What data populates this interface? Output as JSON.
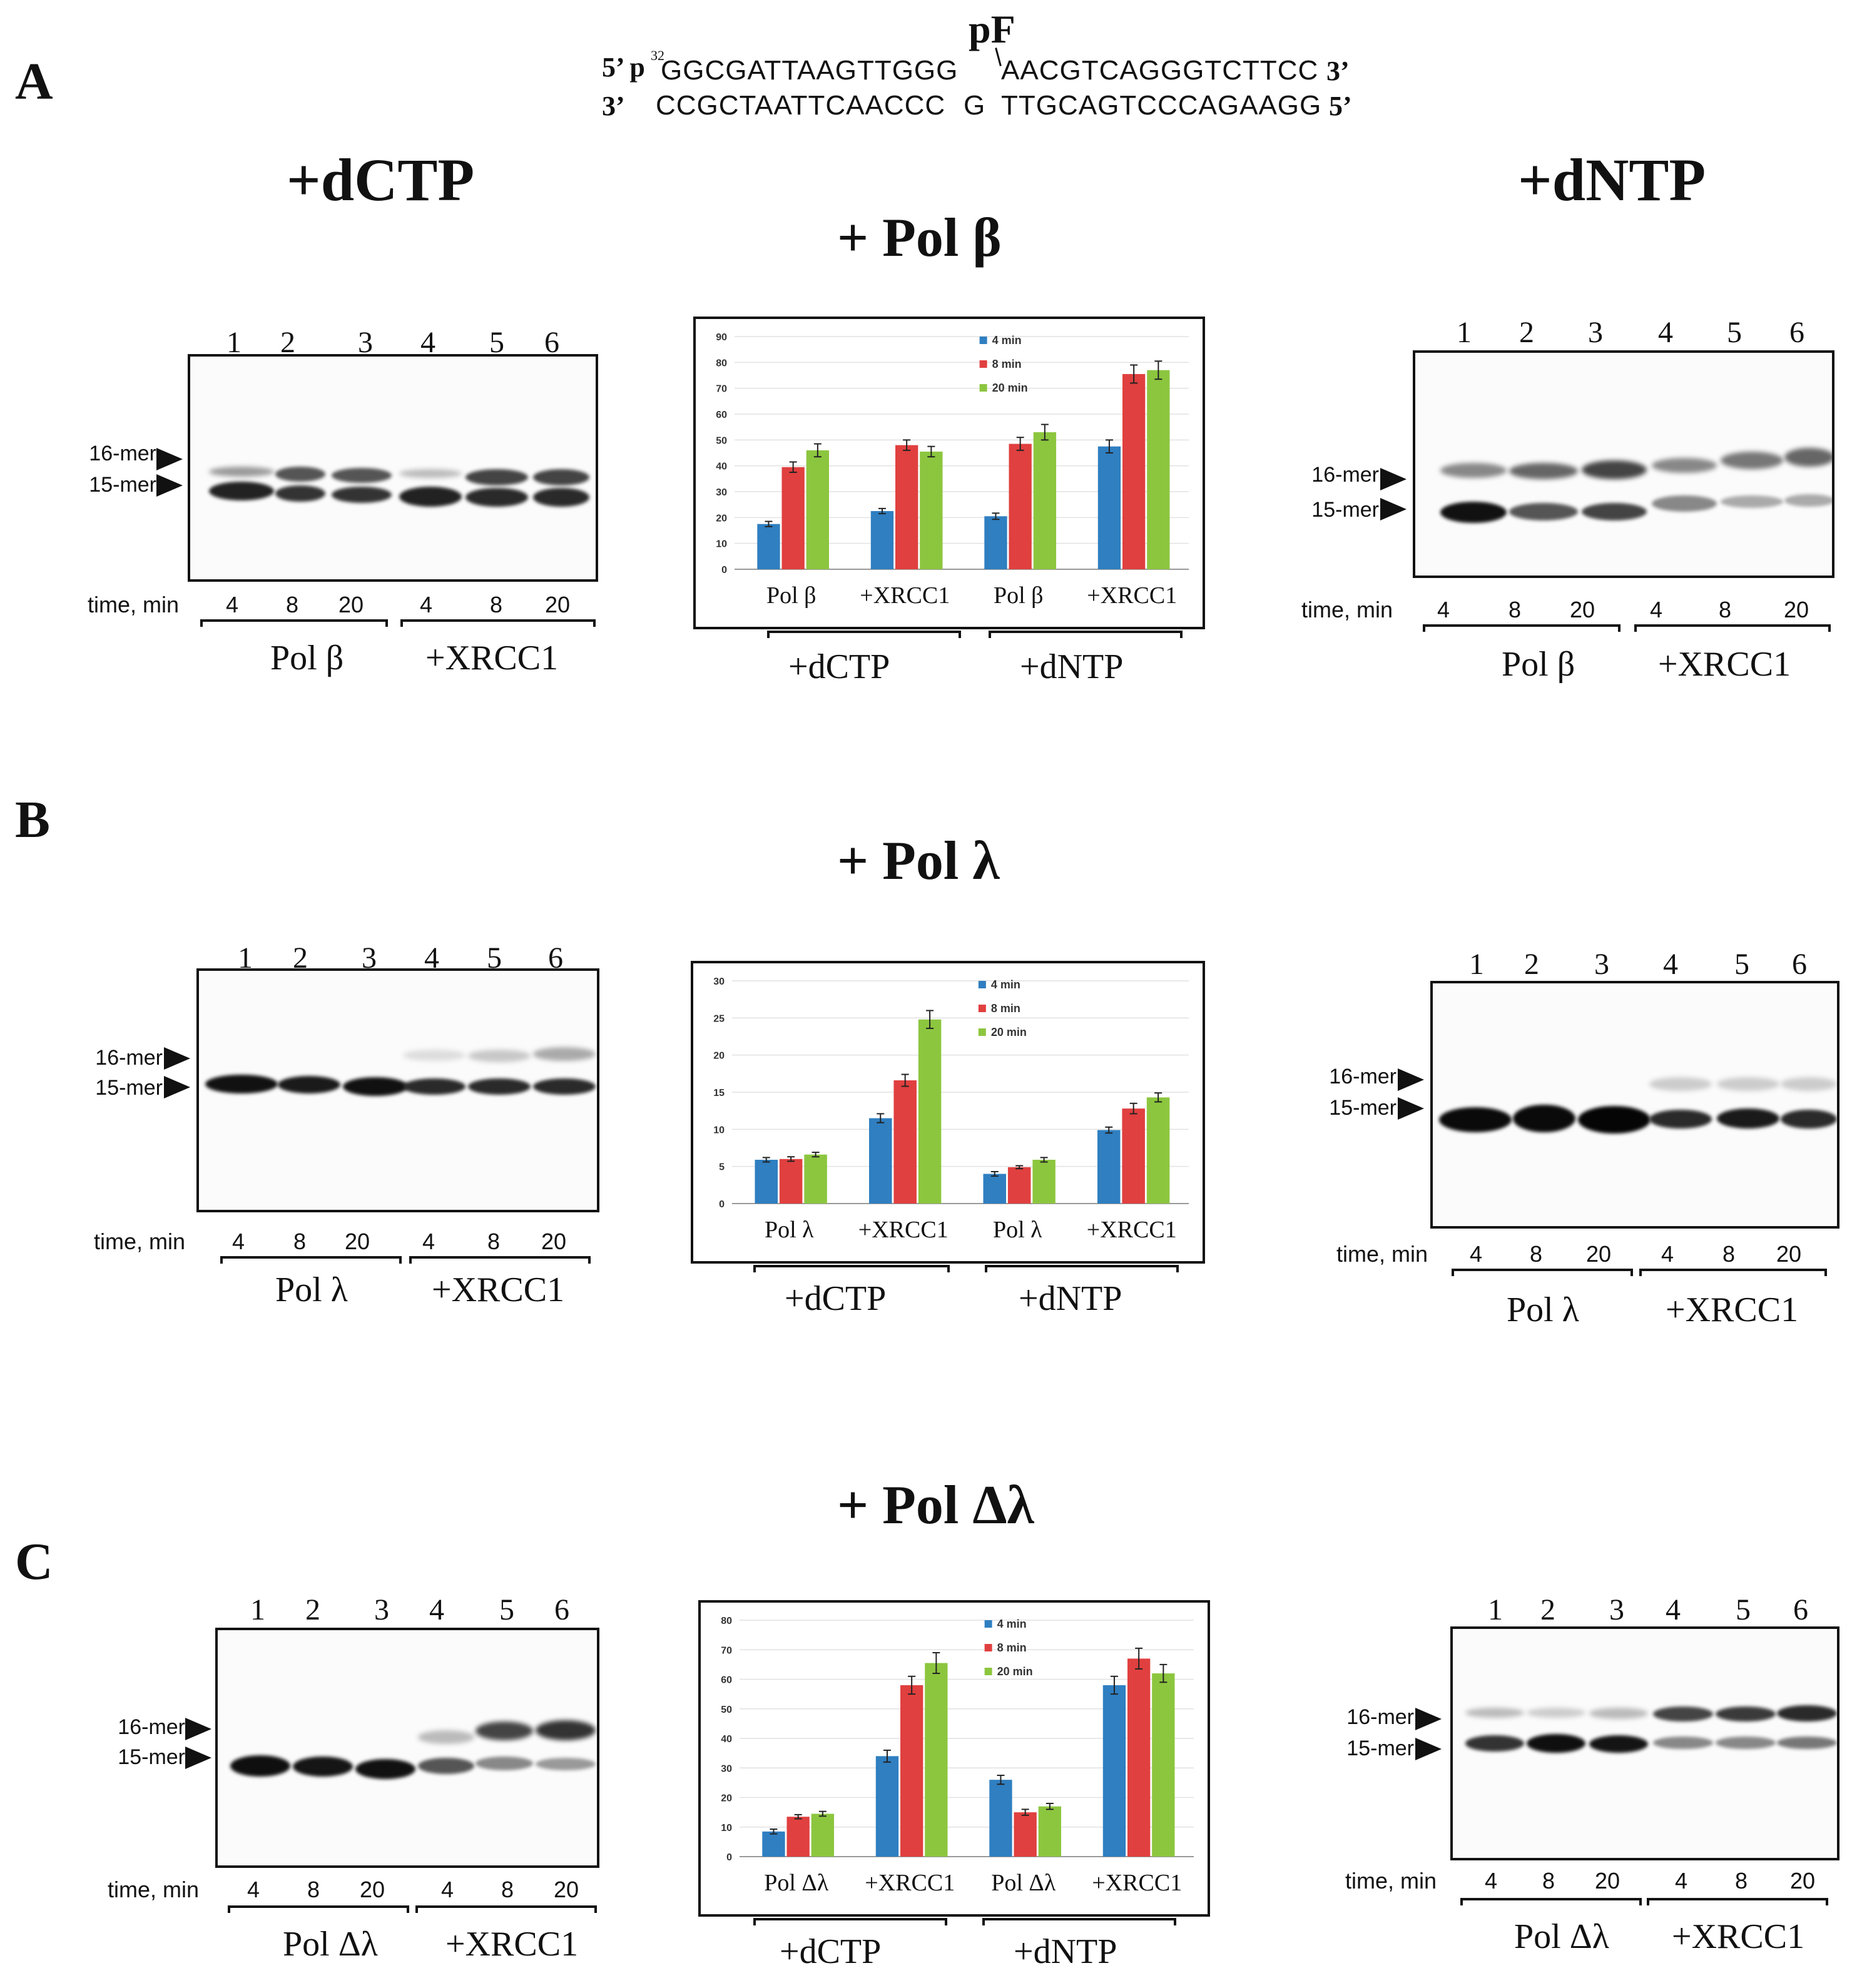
{
  "header": {
    "pf_label": "pF",
    "top_left": "5’ p",
    "sup": "32",
    "top_seq_left": "GGCGATTAAGTTGGG",
    "top_seq_right": "AACGTCAGGGTCTTCC",
    "top_right": "3’",
    "bottom_left": "3’",
    "bottom_seq_left": "CCGCTAATTCAACCC",
    "bottom_g": "G",
    "bottom_seq_right": "TTGCAGTCCCAGAAGG",
    "bottom_right": "5’"
  },
  "panels": [
    {
      "letter": "A",
      "title": "+ Pol β",
      "left_title": "+dCTP",
      "right_title": "+dNTP",
      "left_gel": {
        "lanes": [
          "1",
          "2",
          "3",
          "4",
          "5",
          "6"
        ],
        "marker16": "16-mer",
        "marker15": "15-mer",
        "time_label": "time, min",
        "times": [
          "4",
          "8",
          "20",
          "4",
          "8",
          "20"
        ],
        "group1": "Pol β",
        "group2": "+XRCC1"
      },
      "right_gel": {
        "lanes": [
          "1",
          "2",
          "3",
          "4",
          "5",
          "6"
        ],
        "marker16": "16-mer",
        "marker15": "15-mer",
        "time_label": "time, min",
        "times": [
          "4",
          "8",
          "20",
          "4",
          "8",
          "20"
        ],
        "group1": "Pol β",
        "group2": "+XRCC1"
      },
      "chart_group1": "+dCTP",
      "chart_group2": "+dNTP"
    },
    {
      "letter": "B",
      "title": "+ Pol λ",
      "left_gel": {
        "lanes": [
          "1",
          "2",
          "3",
          "4",
          "5",
          "6"
        ],
        "marker16": "16-mer",
        "marker15": "15-mer",
        "time_label": "time, min",
        "times": [
          "4",
          "8",
          "20",
          "4",
          "8",
          "20"
        ],
        "group1": "Pol λ",
        "group2": "+XRCC1"
      },
      "right_gel": {
        "lanes": [
          "1",
          "2",
          "3",
          "4",
          "5",
          "6"
        ],
        "marker16": "16-mer",
        "marker15": "15-mer",
        "time_label": "time, min",
        "times": [
          "4",
          "8",
          "20",
          "4",
          "8",
          "20"
        ],
        "group1": "Pol λ",
        "group2": "+XRCC1"
      },
      "chart_group1": "+dCTP",
      "chart_group2": "+dNTP"
    },
    {
      "letter": "C",
      "title": "+ Pol Δλ",
      "left_gel": {
        "lanes": [
          "1",
          "2",
          "3",
          "4",
          "5",
          "6"
        ],
        "marker16": "16-mer",
        "marker15": "15-mer",
        "time_label": "time, min",
        "times": [
          "4",
          "8",
          "20",
          "4",
          "8",
          "20"
        ],
        "group1": "Pol Δλ",
        "group2": "+XRCC1"
      },
      "right_gel": {
        "lanes": [
          "1",
          "2",
          "3",
          "4",
          "5",
          "6"
        ],
        "marker16": "16-mer",
        "marker15": "15-mer",
        "time_label": "time, min",
        "times": [
          "4",
          "8",
          "20",
          "4",
          "8",
          "20"
        ],
        "group1": "Pol Δλ",
        "group2": "+XRCC1"
      },
      "chart_group1": "+dCTP",
      "chart_group2": "+dNTP"
    }
  ],
  "colors": {
    "min4": "#2f7fc1",
    "min8": "#e0403f",
    "min20": "#8cc63f"
  },
  "chart_data": [
    {
      "type": "bar",
      "title": "",
      "categories": [
        "Pol β",
        "+XRCC1",
        "Pol β",
        "+XRCC1"
      ],
      "series": [
        {
          "name": "4 min",
          "values": [
            17.5,
            22.5,
            20.5,
            47.5
          ],
          "errors": [
            1,
            1,
            1.2,
            2.5
          ]
        },
        {
          "name": "8 min",
          "values": [
            39.5,
            48,
            48.5,
            75.5
          ],
          "errors": [
            2,
            2,
            2.5,
            3.5
          ]
        },
        {
          "name": "20 min",
          "values": [
            46,
            45.5,
            53,
            77
          ],
          "errors": [
            2.5,
            2,
            3,
            3.5
          ]
        }
      ],
      "yticks": [
        "0",
        "10",
        "20",
        "30",
        "40",
        "50",
        "60",
        "70",
        "80",
        "90"
      ],
      "ylim": [
        0,
        90
      ]
    },
    {
      "type": "bar",
      "title": "",
      "categories": [
        "Pol λ",
        "+XRCC1",
        "Pol λ",
        "+XRCC1"
      ],
      "series": [
        {
          "name": "4 min",
          "values": [
            5.9,
            11.5,
            4,
            9.9
          ],
          "errors": [
            0.3,
            0.6,
            0.3,
            0.4
          ]
        },
        {
          "name": "8 min",
          "values": [
            6,
            16.6,
            4.9,
            12.8
          ],
          "errors": [
            0.3,
            0.8,
            0.2,
            0.7
          ]
        },
        {
          "name": "20 min",
          "values": [
            6.6,
            24.8,
            5.9,
            14.3
          ],
          "errors": [
            0.3,
            1.2,
            0.3,
            0.6
          ]
        }
      ],
      "yticks": [
        "0",
        "5",
        "10",
        "15",
        "20",
        "25",
        "30"
      ],
      "ylim": [
        0,
        30
      ]
    },
    {
      "type": "bar",
      "title": "",
      "categories": [
        "Pol Δλ",
        "+XRCC1",
        "Pol Δλ",
        "+XRCC1"
      ],
      "series": [
        {
          "name": "4 min",
          "values": [
            8.5,
            34,
            26,
            58
          ],
          "errors": [
            0.8,
            2,
            1.5,
            3
          ]
        },
        {
          "name": "8 min",
          "values": [
            13.5,
            58,
            15,
            67
          ],
          "errors": [
            0.7,
            3,
            1,
            3.5
          ]
        },
        {
          "name": "20 min",
          "values": [
            14.5,
            65.5,
            17,
            62
          ],
          "errors": [
            0.8,
            3.5,
            1,
            3
          ]
        }
      ],
      "yticks": [
        "0",
        "10",
        "20",
        "30",
        "40",
        "50",
        "60",
        "70",
        "80"
      ],
      "ylim": [
        0,
        80
      ]
    }
  ]
}
